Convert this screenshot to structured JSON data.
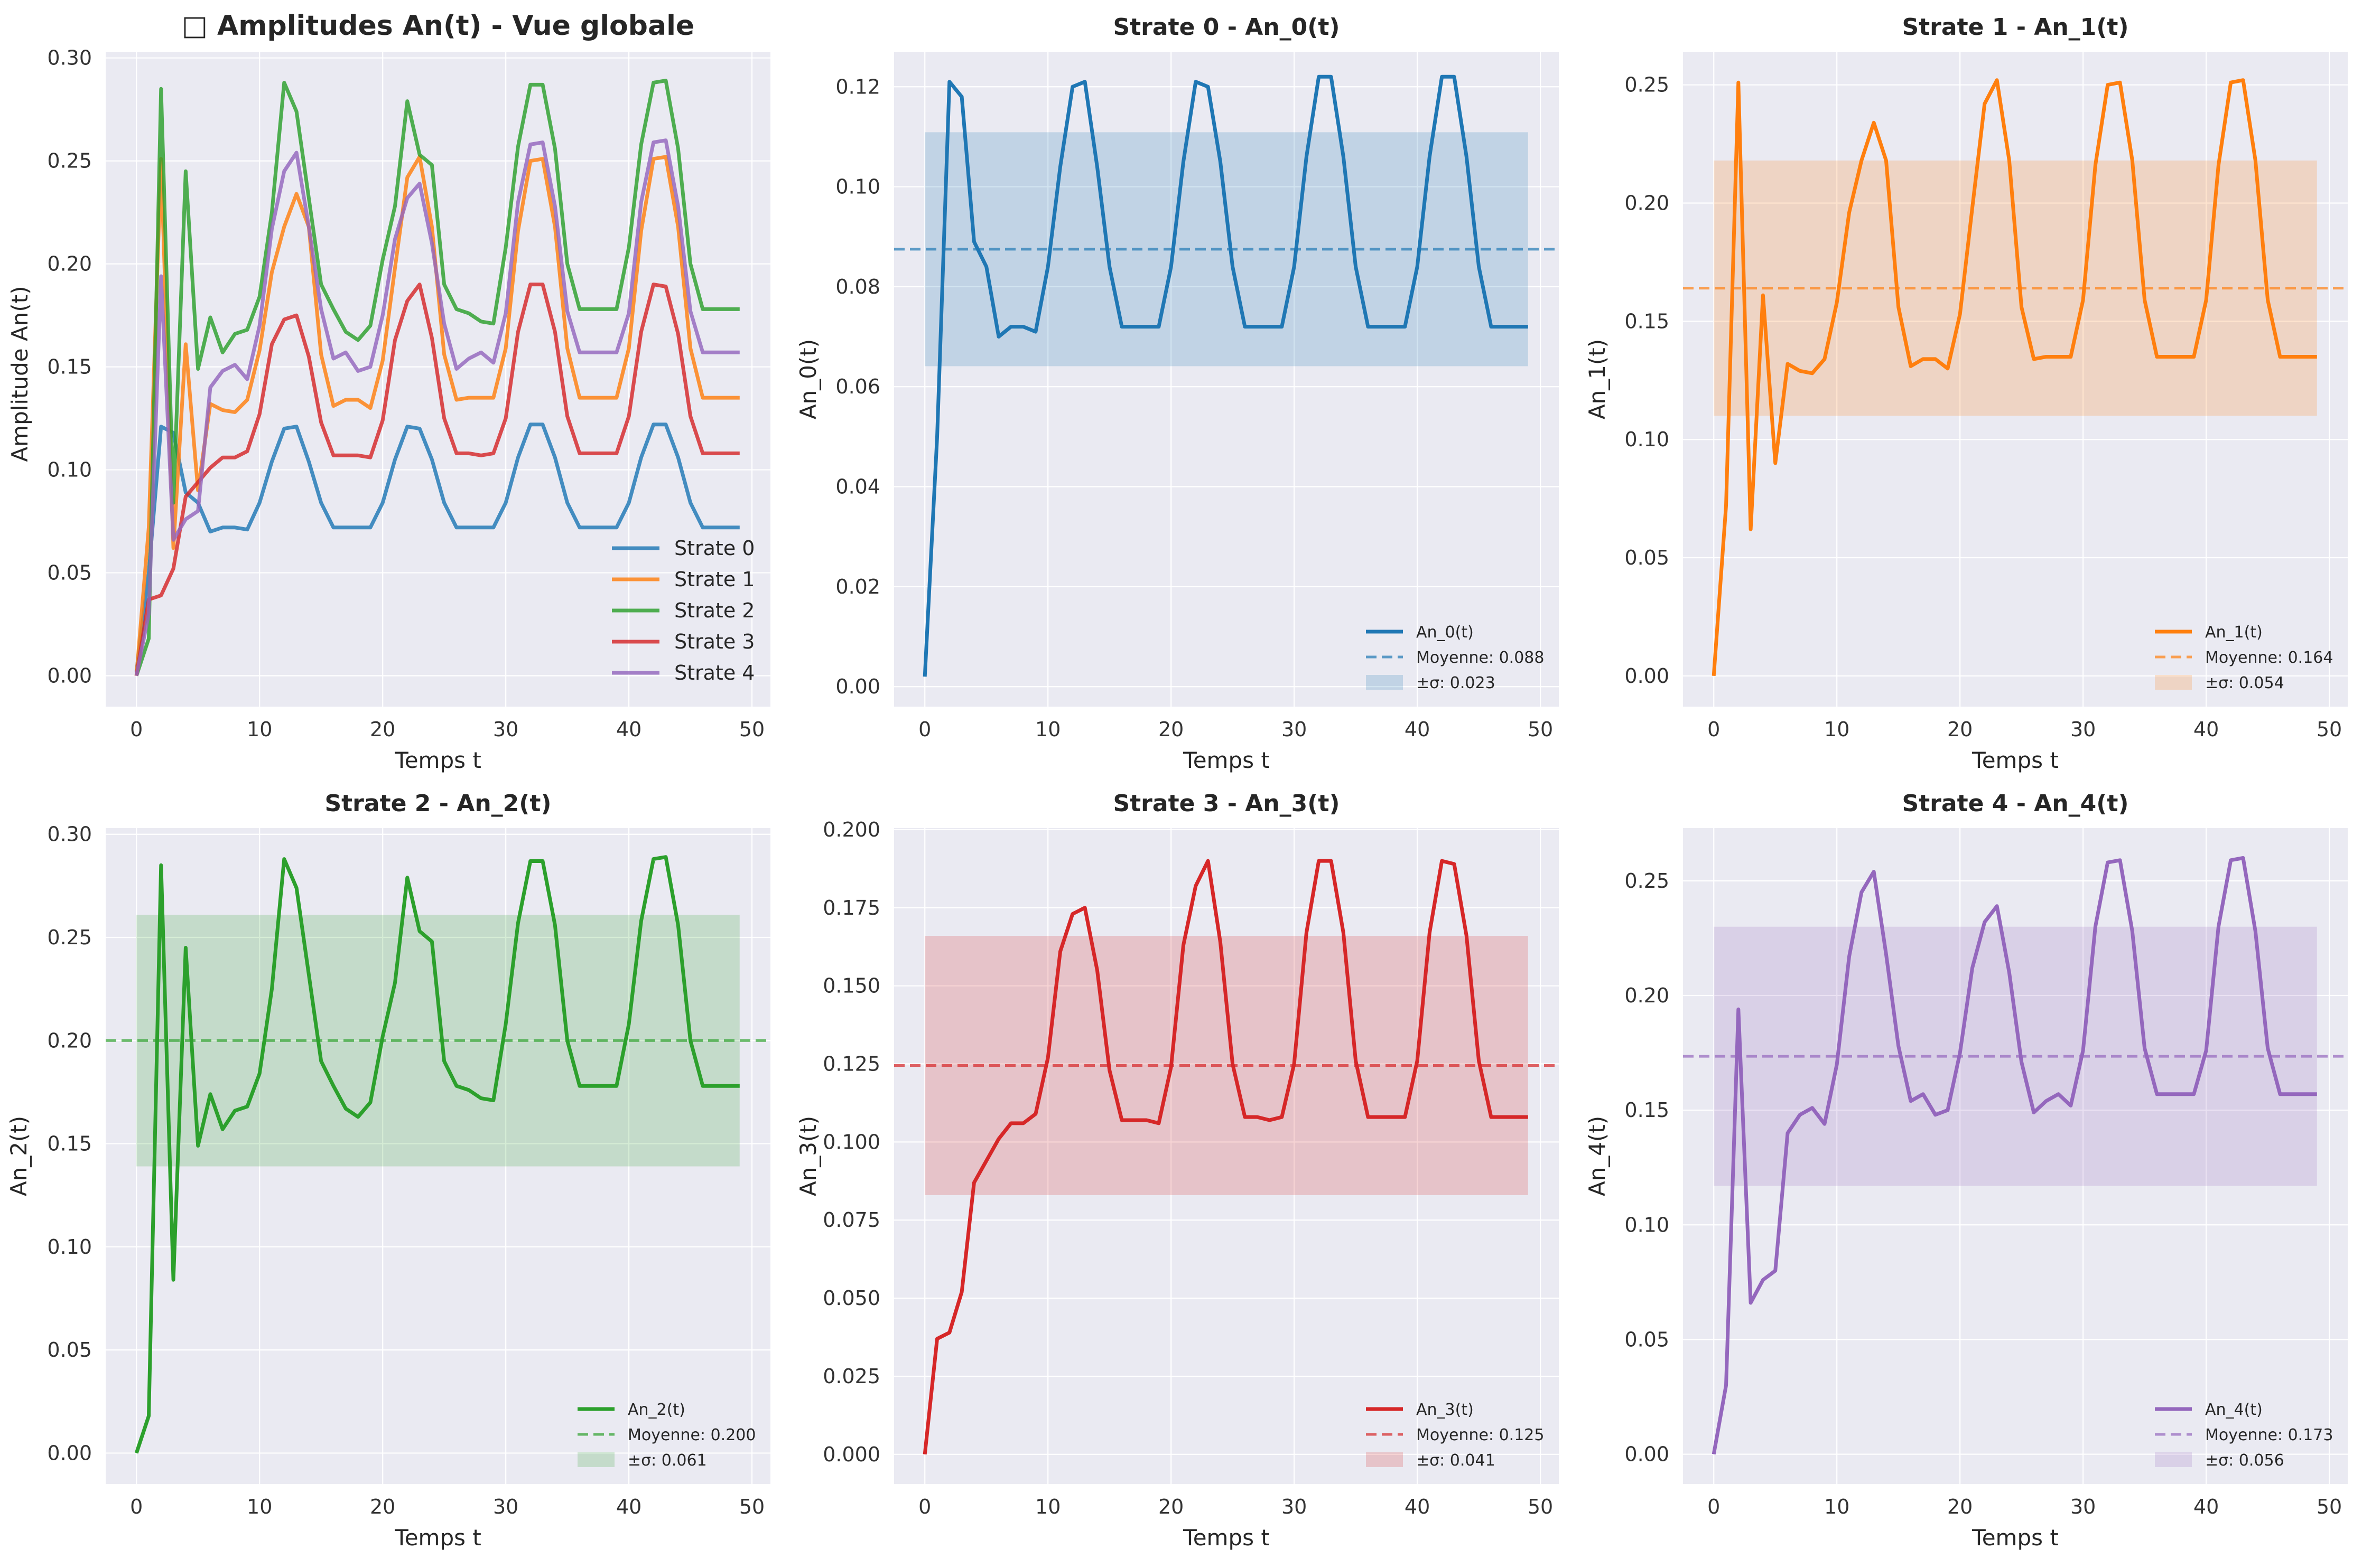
{
  "chart_data": [
    {
      "type": "line",
      "title": "Amplitudes An(t) - Vue globale",
      "title_icon": "missing-glyph-box",
      "xlabel": "Temps t",
      "ylabel": "Amplitude An(t)",
      "xlim": [
        -2.5,
        51.5
      ],
      "ylim": [
        -0.015,
        0.303
      ],
      "xticks": [
        "0",
        "10",
        "20",
        "30",
        "40",
        "50"
      ],
      "yticks": [
        "0.00",
        "0.05",
        "0.10",
        "0.15",
        "0.20",
        "0.25",
        "0.30"
      ],
      "grid": true,
      "legend": "lower-right",
      "series": [
        {
          "name": "Strate 0",
          "color": "#1f77b4",
          "x": [
            0,
            1,
            2,
            3,
            4,
            5,
            6,
            7,
            8,
            9,
            10,
            11,
            12,
            13,
            14,
            15,
            16,
            17,
            18,
            19,
            20,
            21,
            22,
            23,
            24,
            25,
            26,
            27,
            28,
            29,
            30,
            31,
            32,
            33,
            34,
            35,
            36,
            37,
            38,
            39,
            40,
            41,
            42,
            43,
            44,
            45,
            46,
            47,
            48,
            49
          ],
          "values": [
            0.002,
            0.05,
            0.121,
            0.118,
            0.089,
            0.084,
            0.07,
            0.072,
            0.072,
            0.071,
            0.084,
            0.104,
            0.12,
            0.121,
            0.104,
            0.084,
            0.072,
            0.072,
            0.072,
            0.072,
            0.084,
            0.105,
            0.121,
            0.12,
            0.105,
            0.084,
            0.072,
            0.072,
            0.072,
            0.072,
            0.084,
            0.106,
            0.122,
            0.122,
            0.106,
            0.084,
            0.072,
            0.072,
            0.072,
            0.072,
            0.084,
            0.106,
            0.122,
            0.122,
            0.106,
            0.084,
            0.072,
            0.072,
            0.072,
            0.072
          ]
        },
        {
          "name": "Strate 1",
          "color": "#ff7f0e",
          "x": [
            0,
            1,
            2,
            3,
            4,
            5,
            6,
            7,
            8,
            9,
            10,
            11,
            12,
            13,
            14,
            15,
            16,
            17,
            18,
            19,
            20,
            21,
            22,
            23,
            24,
            25,
            26,
            27,
            28,
            29,
            30,
            31,
            32,
            33,
            34,
            35,
            36,
            37,
            38,
            39,
            40,
            41,
            42,
            43,
            44,
            45,
            46,
            47,
            48,
            49
          ],
          "values": [
            0.0,
            0.072,
            0.251,
            0.062,
            0.161,
            0.09,
            0.132,
            0.129,
            0.128,
            0.134,
            0.158,
            0.196,
            0.218,
            0.234,
            0.218,
            0.156,
            0.131,
            0.134,
            0.134,
            0.13,
            0.153,
            0.198,
            0.242,
            0.252,
            0.218,
            0.156,
            0.134,
            0.135,
            0.135,
            0.135,
            0.159,
            0.216,
            0.25,
            0.251,
            0.218,
            0.159,
            0.135,
            0.135,
            0.135,
            0.135,
            0.159,
            0.216,
            0.251,
            0.252,
            0.218,
            0.159,
            0.135,
            0.135,
            0.135,
            0.135
          ]
        },
        {
          "name": "Strate 2",
          "color": "#2ca02c",
          "x": [
            0,
            1,
            2,
            3,
            4,
            5,
            6,
            7,
            8,
            9,
            10,
            11,
            12,
            13,
            14,
            15,
            16,
            17,
            18,
            19,
            20,
            21,
            22,
            23,
            24,
            25,
            26,
            27,
            28,
            29,
            30,
            31,
            32,
            33,
            34,
            35,
            36,
            37,
            38,
            39,
            40,
            41,
            42,
            43,
            44,
            45,
            46,
            47,
            48,
            49
          ],
          "values": [
            0.0,
            0.018,
            0.285,
            0.084,
            0.245,
            0.149,
            0.174,
            0.157,
            0.166,
            0.168,
            0.184,
            0.225,
            0.288,
            0.274,
            0.232,
            0.19,
            0.178,
            0.167,
            0.163,
            0.17,
            0.202,
            0.228,
            0.279,
            0.253,
            0.248,
            0.19,
            0.178,
            0.176,
            0.172,
            0.171,
            0.208,
            0.257,
            0.287,
            0.287,
            0.256,
            0.2,
            0.178,
            0.178,
            0.178,
            0.178,
            0.208,
            0.258,
            0.288,
            0.289,
            0.256,
            0.2,
            0.178,
            0.178,
            0.178,
            0.178
          ]
        },
        {
          "name": "Strate 3",
          "color": "#d62728",
          "x": [
            0,
            1,
            2,
            3,
            4,
            5,
            6,
            7,
            8,
            9,
            10,
            11,
            12,
            13,
            14,
            15,
            16,
            17,
            18,
            19,
            20,
            21,
            22,
            23,
            24,
            25,
            26,
            27,
            28,
            29,
            30,
            31,
            32,
            33,
            34,
            35,
            36,
            37,
            38,
            39,
            40,
            41,
            42,
            43,
            44,
            45,
            46,
            47,
            48,
            49
          ],
          "values": [
            0.0,
            0.037,
            0.039,
            0.052,
            0.087,
            0.094,
            0.101,
            0.106,
            0.106,
            0.109,
            0.127,
            0.161,
            0.173,
            0.175,
            0.155,
            0.123,
            0.107,
            0.107,
            0.107,
            0.106,
            0.124,
            0.163,
            0.182,
            0.19,
            0.164,
            0.125,
            0.108,
            0.108,
            0.107,
            0.108,
            0.125,
            0.167,
            0.19,
            0.19,
            0.167,
            0.126,
            0.108,
            0.108,
            0.108,
            0.108,
            0.126,
            0.167,
            0.19,
            0.189,
            0.166,
            0.126,
            0.108,
            0.108,
            0.108,
            0.108
          ]
        },
        {
          "name": "Strate 4",
          "color": "#9467bd",
          "x": [
            0,
            1,
            2,
            3,
            4,
            5,
            6,
            7,
            8,
            9,
            10,
            11,
            12,
            13,
            14,
            15,
            16,
            17,
            18,
            19,
            20,
            21,
            22,
            23,
            24,
            25,
            26,
            27,
            28,
            29,
            30,
            31,
            32,
            33,
            34,
            35,
            36,
            37,
            38,
            39,
            40,
            41,
            42,
            43,
            44,
            45,
            46,
            47,
            48,
            49
          ],
          "values": [
            0.0,
            0.03,
            0.194,
            0.066,
            0.076,
            0.08,
            0.14,
            0.148,
            0.151,
            0.144,
            0.17,
            0.217,
            0.245,
            0.254,
            0.218,
            0.178,
            0.154,
            0.157,
            0.148,
            0.15,
            0.175,
            0.212,
            0.232,
            0.239,
            0.21,
            0.171,
            0.149,
            0.154,
            0.157,
            0.152,
            0.176,
            0.23,
            0.258,
            0.259,
            0.228,
            0.177,
            0.157,
            0.157,
            0.157,
            0.157,
            0.176,
            0.23,
            0.259,
            0.26,
            0.228,
            0.177,
            0.157,
            0.157,
            0.157,
            0.157
          ]
        }
      ]
    },
    {
      "type": "line",
      "title": "Strate 0 - An_0(t)",
      "xlabel": "Temps t",
      "ylabel": "An_0(t)",
      "xlim": [
        -2.5,
        51.5
      ],
      "ylim": [
        -0.004,
        0.127
      ],
      "xticks": [
        "0",
        "10",
        "20",
        "30",
        "40",
        "50"
      ],
      "yticks": [
        "0.00",
        "0.02",
        "0.04",
        "0.06",
        "0.08",
        "0.10",
        "0.12"
      ],
      "grid": true,
      "legend": "lower-right",
      "color": "#1f77b4",
      "mean": 0.0875,
      "std": 0.0234,
      "series": [
        {
          "name": "An_0(t)",
          "values": [
            0.002,
            0.05,
            0.121,
            0.118,
            0.089,
            0.084,
            0.07,
            0.072,
            0.072,
            0.071,
            0.084,
            0.104,
            0.12,
            0.121,
            0.104,
            0.084,
            0.072,
            0.072,
            0.072,
            0.072,
            0.084,
            0.105,
            0.121,
            0.12,
            0.105,
            0.084,
            0.072,
            0.072,
            0.072,
            0.072,
            0.084,
            0.106,
            0.122,
            0.122,
            0.106,
            0.084,
            0.072,
            0.072,
            0.072,
            0.072,
            0.084,
            0.106,
            0.122,
            0.122,
            0.106,
            0.084,
            0.072,
            0.072,
            0.072,
            0.072
          ]
        }
      ],
      "legend_entries": [
        "An_0(t)",
        "Moyenne: 0.088",
        "±σ: 0.023"
      ]
    },
    {
      "type": "line",
      "title": "Strate 1 - An_1(t)",
      "xlabel": "Temps t",
      "ylabel": "An_1(t)",
      "xlim": [
        -2.5,
        51.5
      ],
      "ylim": [
        -0.013,
        0.264
      ],
      "xticks": [
        "0",
        "10",
        "20",
        "30",
        "40",
        "50"
      ],
      "yticks": [
        "0.00",
        "0.05",
        "0.10",
        "0.15",
        "0.20",
        "0.25"
      ],
      "grid": true,
      "legend": "lower-right",
      "color": "#ff7f0e",
      "mean": 0.164,
      "std": 0.054,
      "series": [
        {
          "name": "An_1(t)",
          "values": [
            0.0,
            0.072,
            0.251,
            0.062,
            0.161,
            0.09,
            0.132,
            0.129,
            0.128,
            0.134,
            0.158,
            0.196,
            0.218,
            0.234,
            0.218,
            0.156,
            0.131,
            0.134,
            0.134,
            0.13,
            0.153,
            0.198,
            0.242,
            0.252,
            0.218,
            0.156,
            0.134,
            0.135,
            0.135,
            0.135,
            0.159,
            0.216,
            0.25,
            0.251,
            0.218,
            0.159,
            0.135,
            0.135,
            0.135,
            0.135,
            0.159,
            0.216,
            0.251,
            0.252,
            0.218,
            0.159,
            0.135,
            0.135,
            0.135,
            0.135
          ]
        }
      ],
      "legend_entries": [
        "An_1(t)",
        "Moyenne: 0.164",
        "±σ: 0.054"
      ]
    },
    {
      "type": "line",
      "title": "Strate 2 - An_2(t)",
      "xlabel": "Temps t",
      "ylabel": "An_2(t)",
      "xlim": [
        -2.5,
        51.5
      ],
      "ylim": [
        -0.015,
        0.303
      ],
      "xticks": [
        "0",
        "10",
        "20",
        "30",
        "40",
        "50"
      ],
      "yticks": [
        "0.00",
        "0.05",
        "0.10",
        "0.15",
        "0.20",
        "0.25",
        "0.30"
      ],
      "grid": true,
      "legend": "lower-right",
      "color": "#2ca02c",
      "mean": 0.2,
      "std": 0.061,
      "series": [
        {
          "name": "An_2(t)",
          "values": [
            0.0,
            0.018,
            0.285,
            0.084,
            0.245,
            0.149,
            0.174,
            0.157,
            0.166,
            0.168,
            0.184,
            0.225,
            0.288,
            0.274,
            0.232,
            0.19,
            0.178,
            0.167,
            0.163,
            0.17,
            0.202,
            0.228,
            0.279,
            0.253,
            0.248,
            0.19,
            0.178,
            0.176,
            0.172,
            0.171,
            0.208,
            0.257,
            0.287,
            0.287,
            0.256,
            0.2,
            0.178,
            0.178,
            0.178,
            0.178,
            0.208,
            0.258,
            0.288,
            0.289,
            0.256,
            0.2,
            0.178,
            0.178,
            0.178,
            0.178
          ]
        }
      ],
      "legend_entries": [
        "An_2(t)",
        "Moyenne: 0.200",
        "±σ: 0.061"
      ]
    },
    {
      "type": "line",
      "title": "Strate 3 - An_3(t)",
      "xlabel": "Temps t",
      "ylabel": "An_3(t)",
      "xlim": [
        -2.5,
        51.5
      ],
      "ylim": [
        -0.0095,
        0.2005
      ],
      "xticks": [
        "0",
        "10",
        "20",
        "30",
        "40",
        "50"
      ],
      "yticks": [
        "0.000",
        "0.025",
        "0.050",
        "0.075",
        "0.100",
        "0.125",
        "0.150",
        "0.175",
        "0.200"
      ],
      "grid": true,
      "legend": "lower-right",
      "color": "#d62728",
      "mean": 0.1245,
      "std": 0.0415,
      "series": [
        {
          "name": "An_3(t)",
          "values": [
            0.0,
            0.037,
            0.039,
            0.052,
            0.087,
            0.094,
            0.101,
            0.106,
            0.106,
            0.109,
            0.127,
            0.161,
            0.173,
            0.175,
            0.155,
            0.123,
            0.107,
            0.107,
            0.107,
            0.106,
            0.124,
            0.163,
            0.182,
            0.19,
            0.164,
            0.125,
            0.108,
            0.108,
            0.107,
            0.108,
            0.125,
            0.167,
            0.19,
            0.19,
            0.167,
            0.126,
            0.108,
            0.108,
            0.108,
            0.108,
            0.126,
            0.167,
            0.19,
            0.189,
            0.166,
            0.126,
            0.108,
            0.108,
            0.108,
            0.108
          ]
        }
      ],
      "legend_entries": [
        "An_3(t)",
        "Moyenne: 0.125",
        "±σ: 0.041"
      ]
    },
    {
      "type": "line",
      "title": "Strate 4 - An_4(t)",
      "xlabel": "Temps t",
      "ylabel": "An_4(t)",
      "xlim": [
        -2.5,
        51.5
      ],
      "ylim": [
        -0.013,
        0.273
      ],
      "xticks": [
        "0",
        "10",
        "20",
        "30",
        "40",
        "50"
      ],
      "yticks": [
        "0.00",
        "0.05",
        "0.10",
        "0.15",
        "0.20",
        "0.25"
      ],
      "grid": true,
      "legend": "lower-right",
      "color": "#9467bd",
      "mean": 0.1735,
      "std": 0.0565,
      "series": [
        {
          "name": "An_4(t)",
          "values": [
            0.0,
            0.03,
            0.194,
            0.066,
            0.076,
            0.08,
            0.14,
            0.148,
            0.151,
            0.144,
            0.17,
            0.217,
            0.245,
            0.254,
            0.218,
            0.178,
            0.154,
            0.157,
            0.148,
            0.15,
            0.175,
            0.212,
            0.232,
            0.239,
            0.21,
            0.171,
            0.149,
            0.154,
            0.157,
            0.152,
            0.176,
            0.23,
            0.258,
            0.259,
            0.228,
            0.177,
            0.157,
            0.157,
            0.157,
            0.157,
            0.176,
            0.23,
            0.259,
            0.26,
            0.228,
            0.177,
            0.157,
            0.157,
            0.157,
            0.157
          ]
        }
      ],
      "legend_entries": [
        "An_4(t)",
        "Moyenne: 0.173",
        "±σ: 0.056"
      ]
    }
  ]
}
